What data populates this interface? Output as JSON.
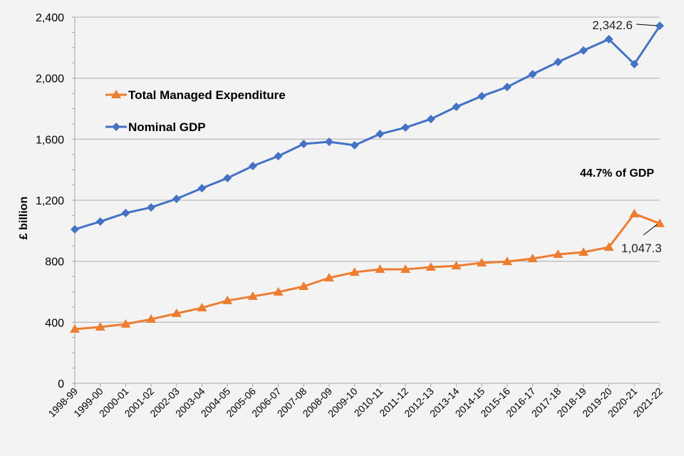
{
  "chart_data": {
    "type": "line",
    "title": "",
    "xlabel": "",
    "ylabel": "£ billion",
    "ylim": [
      0,
      2400
    ],
    "yticks": [
      0,
      400,
      800,
      1200,
      1600,
      2000,
      2400
    ],
    "ytick_labels": [
      "0",
      "400",
      "800",
      "1,200",
      "1,600",
      "2,000",
      "2,400"
    ],
    "grid": true,
    "legend_placement": "top-left",
    "categories": [
      "1998-99",
      "1999-00",
      "2000-01",
      "2001-02",
      "2002-03",
      "2003-04",
      "2004-05",
      "2005-06",
      "2006-07",
      "2007-08",
      "2008-09",
      "2009-10",
      "2010-11",
      "2011-12",
      "2012-13",
      "2013-14",
      "2014-15",
      "2015-16",
      "2016-17",
      "2017-18",
      "2018-19",
      "2019-20",
      "2020-21",
      "2021-22"
    ],
    "series": [
      {
        "name": "Total Managed Expenditure",
        "color": "#ed7d31",
        "marker": "triangle",
        "values": [
          355,
          369,
          388,
          420,
          458,
          495,
          542,
          570,
          598,
          635,
          691,
          728,
          747,
          747,
          761,
          770,
          789,
          798,
          817,
          845,
          859,
          892,
          1111,
          1047.3
        ]
      },
      {
        "name": "Nominal GDP",
        "color": "#4472c4",
        "marker": "diamond",
        "values": [
          1009,
          1060,
          1116,
          1153,
          1209,
          1279,
          1345,
          1424,
          1489,
          1569,
          1583,
          1560,
          1634,
          1676,
          1732,
          1812,
          1882,
          1942,
          2026,
          2106,
          2181,
          2255,
          2092,
          2342.6
        ]
      }
    ],
    "annotations": {
      "gdp_last": "2,342.6",
      "tme_last": "1,047.3",
      "share": "44.7% of GDP"
    }
  }
}
